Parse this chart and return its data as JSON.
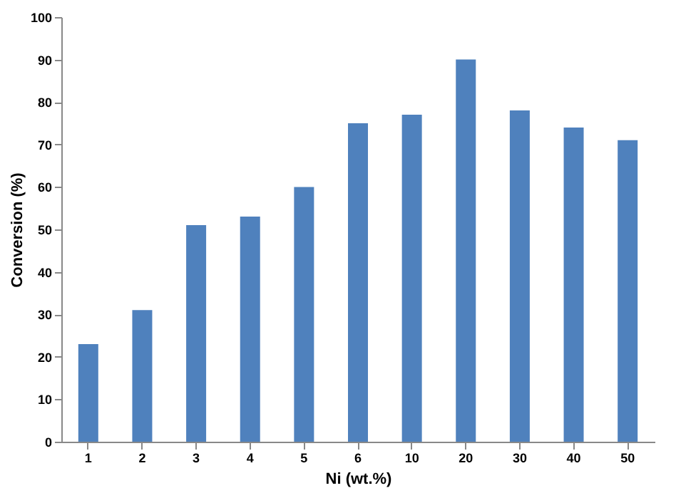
{
  "chart_data": {
    "type": "bar",
    "xlabel": "Ni (wt.%)",
    "ylabel": "Conversion (%)",
    "categories": [
      "1",
      "2",
      "3",
      "4",
      "5",
      "6",
      "10",
      "20",
      "30",
      "40",
      "50"
    ],
    "values": [
      23,
      31,
      51,
      53,
      60,
      75,
      77,
      90,
      78,
      74,
      71
    ],
    "color": "#4f81bd",
    "ylim": [
      0,
      100
    ],
    "yticks": [
      0,
      10,
      20,
      30,
      40,
      50,
      60,
      70,
      80,
      90,
      100
    ],
    "grid": false
  }
}
